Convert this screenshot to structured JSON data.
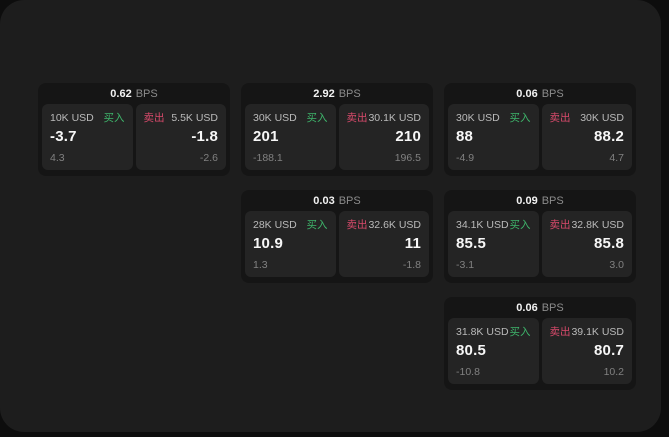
{
  "page": {
    "background": "#0d0d0d",
    "surface_color": "#1d1d1d",
    "card_color": "#151515",
    "panel_color": "#242424"
  },
  "labels": {
    "bps_unit": "BPS",
    "buy": "买入",
    "sell": "卖出"
  },
  "colors": {
    "buy_green": "#3eb56b",
    "sell_red": "#d84a6b"
  },
  "cards": [
    {
      "bps": "0.62",
      "buy": {
        "amount": "10K USD",
        "value": "-3.7",
        "delta": "4.3"
      },
      "sell": {
        "amount": "5.5K USD",
        "value": "-1.8",
        "delta": "-2.6"
      }
    },
    {
      "bps": "2.92",
      "buy": {
        "amount": "30K USD",
        "value": "201",
        "delta": "-188.1"
      },
      "sell": {
        "amount": "30.1K USD",
        "value": "210",
        "delta": "196.5"
      }
    },
    {
      "bps": "0.06",
      "buy": {
        "amount": "30K USD",
        "value": "88",
        "delta": "-4.9"
      },
      "sell": {
        "amount": "30K USD",
        "value": "88.2",
        "delta": "4.7"
      }
    },
    {
      "bps": "0.03",
      "buy": {
        "amount": "28K USD",
        "value": "10.9",
        "delta": "1.3"
      },
      "sell": {
        "amount": "32.6K USD",
        "value": "11",
        "delta": "-1.8"
      }
    },
    {
      "bps": "0.09",
      "buy": {
        "amount": "34.1K USD",
        "value": "85.5",
        "delta": "-3.1"
      },
      "sell": {
        "amount": "32.8K USD",
        "value": "85.8",
        "delta": "3.0"
      }
    },
    {
      "bps": "0.06",
      "buy": {
        "amount": "31.8K USD",
        "value": "80.5",
        "delta": "-10.8"
      },
      "sell": {
        "amount": "39.1K USD",
        "value": "80.7",
        "delta": "10.2"
      }
    }
  ]
}
